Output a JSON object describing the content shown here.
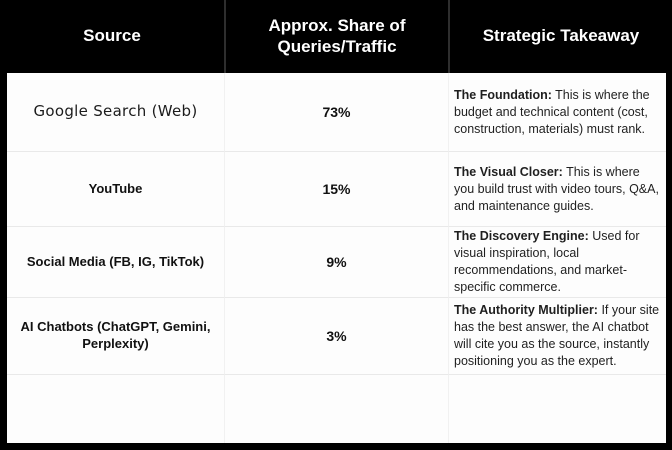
{
  "chart_data": {
    "type": "table",
    "title": "",
    "columns": [
      "Source",
      "Approx. Share of Queries/Traffic",
      "Strategic Takeaway"
    ],
    "rows": [
      [
        "Google Search (Web)",
        "73%",
        "The Foundation: This is where the budget and technical content (cost, construction, materials) must rank."
      ],
      [
        "YouTube",
        "15%",
        "The Visual Closer: This is where you build trust with video tours, Q&A, and maintenance guides."
      ],
      [
        "Social Media (FB, IG, TikTok)",
        "9%",
        "The Discovery Engine: Used for visual inspiration, local recommendations, and market-specific commerce."
      ],
      [
        "AI Chatbots (ChatGPT, Gemini, Perplexity)",
        "3%",
        "The Authority Multiplier: If your site has the best answer, the AI chatbot will cite you as the source, instantly positioning you as the expert."
      ]
    ],
    "shares_numeric": [
      73,
      15,
      9,
      3
    ],
    "legend_position": "none",
    "grid": "on"
  },
  "table": {
    "header": {
      "source": "Source",
      "share": "Approx. Share of Queries/Traffic",
      "takeaway": "Strategic Takeaway"
    },
    "rows": [
      {
        "source": "Google Search (Web)",
        "share": "73%",
        "takeaway_lead": "The Foundation:",
        "takeaway_rest": " This is where the budget and technical content (cost, construction, materials) must rank."
      },
      {
        "source": "YouTube",
        "share": "15%",
        "takeaway_lead": "The Visual Closer:",
        "takeaway_rest": " This is where you build trust with video tours, Q&A, and maintenance guides."
      },
      {
        "source": "Social Media (FB, IG, TikTok)",
        "share": "9%",
        "takeaway_lead": "The Discovery Engine:",
        "takeaway_rest": " Used for visual inspiration, local recommendations, and market-specific commerce."
      },
      {
        "source": "AI Chatbots (ChatGPT, Gemini, Perplexity)",
        "share": "3%",
        "takeaway_lead": "The Authority Multiplier:",
        "takeaway_rest": " If your site has the best answer, the AI chatbot will cite you as the source, instantly positioning you as the expert."
      }
    ]
  },
  "colors": {
    "header_bg": "#000000",
    "header_text": "#ffffff",
    "header_divider": "#2e2e2e",
    "body_bg": "#fdfdfd",
    "grid_line": "#e9e9e9",
    "text": "#111111"
  }
}
